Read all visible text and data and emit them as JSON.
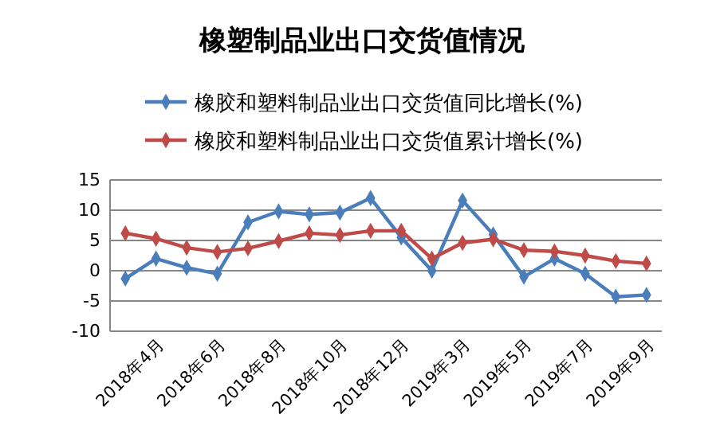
{
  "chart_data": {
    "type": "line",
    "title": "橡塑制品业出口交货值情况",
    "categories": [
      null,
      "2018年4月",
      null,
      "2018年6月",
      null,
      "2018年8月",
      null,
      "2018年10月",
      null,
      "2018年12月",
      null,
      "2019年3月",
      null,
      "2019年5月",
      null,
      "2019年7月",
      null,
      "2019年9月"
    ],
    "series": [
      {
        "name": "橡胶和塑料制品业出口交货值同比增长(%)",
        "color": "#4a7ebb",
        "values": [
          -1.3,
          2,
          0.5,
          -0.5,
          8,
          9.8,
          9.3,
          9.6,
          12,
          5.5,
          0,
          11.6,
          6,
          -1,
          2,
          -0.5,
          -4.3,
          -4
        ]
      },
      {
        "name": "橡胶和塑料制品业出口交货值累计增长(%)",
        "color": "#be4b48",
        "values": [
          6.2,
          5.3,
          3.8,
          3.1,
          3.7,
          4.9,
          6.2,
          5.9,
          6.6,
          6.6,
          2,
          4.6,
          5.2,
          3.4,
          3.2,
          2.5,
          1.6,
          1.2
        ]
      }
    ],
    "ylim": [
      -10,
      15
    ],
    "yticks": [
      -10,
      -5,
      0,
      5,
      10,
      15
    ],
    "grid": "y",
    "legend": "top",
    "marker": "diamond",
    "line_style": "solid"
  }
}
